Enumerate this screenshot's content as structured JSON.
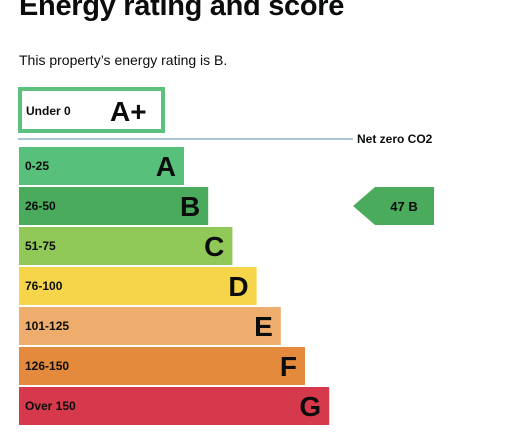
{
  "title": "Energy rating and score",
  "intro": "This property’s energy rating is B.",
  "chart_data": {
    "type": "bar",
    "top_band": {
      "range": "Under 0",
      "letter": "A+",
      "color": "#5fbf7f"
    },
    "net_zero_label": "Net zero CO2",
    "bands": [
      {
        "range": "0-25",
        "letter": "A",
        "color": "#57c17b",
        "length": 1
      },
      {
        "range": "26-50",
        "letter": "B",
        "color": "#4bab5d",
        "length": 2
      },
      {
        "range": "51-75",
        "letter": "C",
        "color": "#90c957",
        "length": 3
      },
      {
        "range": "76-100",
        "letter": "D",
        "color": "#f6d54a",
        "length": 4
      },
      {
        "range": "101-125",
        "letter": "E",
        "color": "#eead6d",
        "length": 5
      },
      {
        "range": "126-150",
        "letter": "F",
        "color": "#e38a3c",
        "length": 6
      },
      {
        "range": "Over 150",
        "letter": "G",
        "color": "#d7394c",
        "length": 7
      }
    ],
    "current": {
      "label": "47 B",
      "score": 47,
      "band": "B",
      "color": "#4bab5d"
    },
    "netzero_line_color": "#a9c6d8"
  }
}
